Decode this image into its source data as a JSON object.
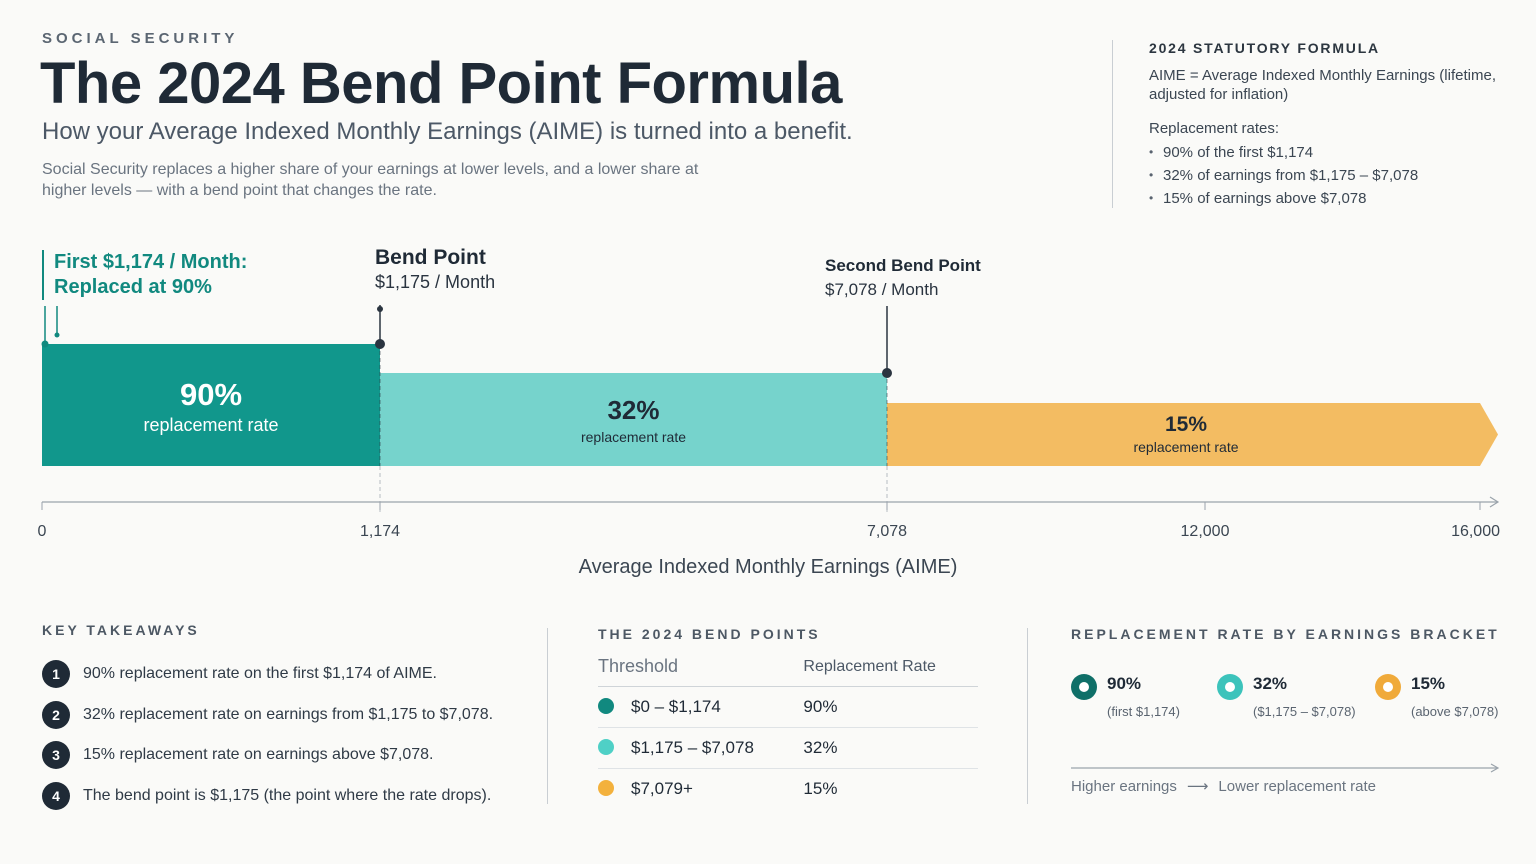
{
  "header": {
    "eyebrow": "SOCIAL SECURITY",
    "title": "The 2024 Bend Point Formula",
    "subtitle": "How your Average Indexed Monthly Earnings (AIME) is turned into a benefit.",
    "description": "Social Security replaces a higher share of your earnings at lower levels, and a lower share at higher levels — with a bend point that changes the rate."
  },
  "formula": {
    "heading": "2024 STATUTORY FORMULA",
    "definition": "AIME = Average Indexed Monthly Earnings (lifetime, adjusted for inflation)",
    "rates_heading": "Replacement rates:",
    "rates": [
      "90% of the first $1,174",
      "32% of earnings from $1,175 – $7,078",
      "15% of earnings above $7,078"
    ]
  },
  "annotations": {
    "first_line1": "First $1,174 / Month:",
    "first_line2": "Replaced at 90%",
    "bend1_title": "Bend Point",
    "bend1_value": "$1,175 / Month",
    "bend2_title": "Second Bend Point",
    "bend2_value": "$7,078 / Month"
  },
  "chart_data": {
    "type": "bar",
    "orientation": "horizontal-segmented",
    "xlabel": "Average Indexed Monthly Earnings (AIME)",
    "xlim": [
      0,
      16000
    ],
    "x_ticks": [
      0,
      1174,
      7078,
      12000,
      16000
    ],
    "x_tick_labels": [
      "0",
      "1,174",
      "7,078",
      "12,000",
      "16,000"
    ],
    "segments": [
      {
        "start": 0,
        "end": 1174,
        "rate": 90,
        "label_pct": "90%",
        "label": "replacement rate",
        "color": "#11978c"
      },
      {
        "start": 1174,
        "end": 7078,
        "rate": 32,
        "label_pct": "32%",
        "label": "replacement rate",
        "color": "#76d3cc"
      },
      {
        "start": 7078,
        "end": 16000,
        "rate": 15,
        "label_pct": "15%",
        "label": "replacement rate",
        "color": "#f3bc62"
      }
    ]
  },
  "takeaways": {
    "heading": "KEY TAKEAWAYS",
    "items": [
      {
        "num": "1",
        "text": "90% replacement rate on the first $1,174 of AIME."
      },
      {
        "num": "2",
        "text": "32% replacement rate on earnings from $1,175 to $7,078."
      },
      {
        "num": "3",
        "text": "15% replacement rate on earnings above $7,078."
      },
      {
        "num": "4",
        "text": "The bend point is $1,175 (the point where the rate drops)."
      }
    ]
  },
  "bend_table": {
    "heading": "THE 2024 BEND POINTS",
    "col1": "Threshold",
    "col2": "Replacement Rate",
    "rows": [
      {
        "threshold": "$0 – $1,174",
        "rate": "90%",
        "color": "#11897f"
      },
      {
        "threshold": "$1,175 – $7,078",
        "rate": "32%",
        "color": "#4fd0c6"
      },
      {
        "threshold": "$7,079+",
        "rate": "15%",
        "color": "#f3b13d"
      }
    ]
  },
  "legend": {
    "heading": "REPLACEMENT RATE BY EARNINGS BRACKET",
    "items": [
      {
        "pct": "90%",
        "range": "(first $1,174)",
        "color": "#0f6f68"
      },
      {
        "pct": "32%",
        "range": "($1,175 – $7,078)",
        "color": "#3cc3bb"
      },
      {
        "pct": "15%",
        "range": "(above $7,078)",
        "color": "#f0aa3a"
      }
    ],
    "arrow_left": "Higher earnings",
    "arrow_mid": "⟶",
    "arrow_right": "Lower replacement rate"
  }
}
